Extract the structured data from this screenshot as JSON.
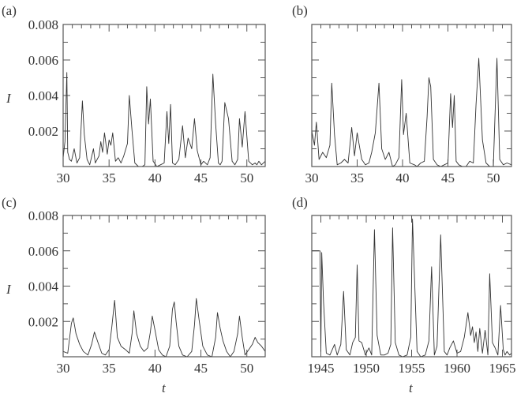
{
  "chart_data": [
    {
      "panel": "(a)",
      "type": "line",
      "xlabel": "",
      "ylabel": "I",
      "xlim": [
        30,
        52
      ],
      "ylim": [
        0,
        0.008
      ],
      "xticks": [
        30,
        35,
        40,
        45,
        50
      ],
      "yticks": [
        0.002,
        0.004,
        0.006,
        0.008
      ],
      "ytick_labels": [
        "0.002",
        "0.004",
        "0.006",
        "0.008"
      ],
      "grid": false,
      "x": [
        30.0,
        30.2,
        30.4,
        30.5,
        30.7,
        30.9,
        31.2,
        31.5,
        31.8,
        32.1,
        32.3,
        32.6,
        32.9,
        33.3,
        33.5,
        33.9,
        34.1,
        34.3,
        34.5,
        34.8,
        35.0,
        35.2,
        35.4,
        35.7,
        36.0,
        36.3,
        36.6,
        37.0,
        37.2,
        37.5,
        37.8,
        38.2,
        38.6,
        38.9,
        39.1,
        39.3,
        39.5,
        39.8,
        40.2,
        40.6,
        41.0,
        41.3,
        41.5,
        41.7,
        41.9,
        42.2,
        42.6,
        43.0,
        43.3,
        43.6,
        44.0,
        44.3,
        44.6,
        45.0,
        45.3,
        45.7,
        46.0,
        46.3,
        46.6,
        46.9,
        47.1,
        47.3,
        47.6,
        48.0,
        48.4,
        48.7,
        49.0,
        49.2,
        49.5,
        49.8,
        50.2,
        50.6,
        50.9,
        51.1,
        51.3,
        51.6,
        52.0
      ],
      "values": [
        0.0005,
        0.0014,
        0.0053,
        0.0008,
        0.0004,
        0.0003,
        0.001,
        0.0002,
        0.0005,
        0.0037,
        0.0018,
        0.0004,
        0.0001,
        0.001,
        0.0002,
        0.0006,
        0.0014,
        0.0008,
        0.0019,
        0.0007,
        0.0015,
        0.0012,
        0.0019,
        0.0003,
        0.0005,
        0.0002,
        0.0006,
        0.0013,
        0.004,
        0.002,
        0.0002,
        0.0,
        0.0,
        0.0001,
        0.0045,
        0.0024,
        0.0038,
        0.0003,
        0.0,
        0.0001,
        0.0002,
        0.0031,
        0.0013,
        0.0035,
        0.0002,
        0.0001,
        0.0004,
        0.0023,
        0.0005,
        0.0016,
        0.001,
        0.0027,
        0.0009,
        0.0001,
        0.0003,
        0.0001,
        0.0005,
        0.0052,
        0.0024,
        0.0002,
        0.0001,
        0.0003,
        0.0036,
        0.0027,
        0.0003,
        0.0001,
        0.0004,
        0.0027,
        0.0011,
        0.0031,
        0.0003,
        0.0001,
        0.0002,
        0.0001,
        0.0003,
        0.0001,
        0.0003
      ]
    },
    {
      "panel": "(b)",
      "type": "line",
      "xlabel": "",
      "ylabel": "",
      "xlim": [
        30,
        52
      ],
      "ylim": [
        0,
        0.008
      ],
      "xticks": [
        30,
        35,
        40,
        45,
        50
      ],
      "yticks": [
        0.002,
        0.004,
        0.006,
        0.008
      ],
      "grid": false,
      "x": [
        30.0,
        30.3,
        30.5,
        30.8,
        31.2,
        31.6,
        32.0,
        32.2,
        32.5,
        32.8,
        33.2,
        33.6,
        34.0,
        34.2,
        34.4,
        34.7,
        35.0,
        35.2,
        35.5,
        35.9,
        36.3,
        36.6,
        37.0,
        37.4,
        37.7,
        38.1,
        38.5,
        38.9,
        39.2,
        39.6,
        39.9,
        40.1,
        40.4,
        40.8,
        41.3,
        41.6,
        42.0,
        42.4,
        42.7,
        42.9,
        43.1,
        43.4,
        43.8,
        44.2,
        44.6,
        45.0,
        45.3,
        45.5,
        45.7,
        45.9,
        46.2,
        46.6,
        47.0,
        47.4,
        47.8,
        48.1,
        48.4,
        48.8,
        49.2,
        49.6,
        50.0,
        50.2,
        50.4,
        50.7,
        51.1,
        51.5,
        52.0
      ],
      "values": [
        0.002,
        0.0012,
        0.0025,
        0.0004,
        0.0008,
        0.0005,
        0.0012,
        0.0047,
        0.0018,
        0.0001,
        0.0002,
        0.0004,
        0.0002,
        0.0012,
        0.0022,
        0.0006,
        0.0019,
        0.0013,
        0.0004,
        0.0001,
        0.0002,
        0.0008,
        0.0019,
        0.0047,
        0.001,
        0.0004,
        0.0008,
        0.0,
        0.0001,
        0.0005,
        0.0049,
        0.0018,
        0.003,
        0.0002,
        0.0001,
        0.0,
        0.0002,
        0.0003,
        0.0028,
        0.005,
        0.0045,
        0.0004,
        0.0001,
        0.0,
        0.0001,
        0.0002,
        0.0041,
        0.0022,
        0.004,
        0.0003,
        0.0001,
        0.0,
        0.0,
        0.0003,
        0.0002,
        0.0035,
        0.0061,
        0.0015,
        0.0002,
        0.0,
        0.0,
        0.0031,
        0.0061,
        0.0004,
        0.0001,
        0.0002,
        0.0001
      ]
    },
    {
      "panel": "(c)",
      "type": "line",
      "xlabel": "t",
      "ylabel": "I",
      "xlim": [
        30,
        52
      ],
      "ylim": [
        0,
        0.008
      ],
      "xticks": [
        30,
        35,
        40,
        45,
        50
      ],
      "yticks": [
        0.002,
        0.004,
        0.006,
        0.008
      ],
      "ytick_labels": [
        "0.002",
        "0.004",
        "0.006",
        "0.008"
      ],
      "grid": false,
      "x": [
        30.0,
        30.5,
        30.9,
        31.1,
        31.4,
        31.8,
        32.2,
        32.7,
        33.1,
        33.4,
        33.8,
        34.2,
        34.6,
        35.0,
        35.3,
        35.6,
        35.9,
        36.3,
        36.8,
        37.2,
        37.5,
        37.7,
        38.0,
        38.4,
        38.8,
        39.2,
        39.5,
        39.7,
        40.0,
        40.4,
        40.8,
        41.2,
        41.6,
        41.9,
        42.1,
        42.3,
        42.6,
        43.0,
        43.5,
        44.0,
        44.3,
        44.5,
        44.8,
        45.2,
        45.7,
        46.2,
        46.6,
        46.8,
        47.1,
        47.4,
        47.8,
        48.2,
        48.6,
        49.0,
        49.2,
        49.5,
        49.8,
        50.2,
        50.6,
        50.9,
        51.2,
        51.6,
        52.0
      ],
      "values": [
        0.0003,
        0.0002,
        0.0019,
        0.0022,
        0.0013,
        0.0007,
        0.0003,
        0.0001,
        0.0007,
        0.0014,
        0.0008,
        0.0002,
        0.0001,
        0.0004,
        0.0017,
        0.0032,
        0.0011,
        0.0006,
        0.0004,
        0.0002,
        0.0013,
        0.0026,
        0.0013,
        0.0006,
        0.0003,
        0.0005,
        0.0014,
        0.0023,
        0.0015,
        0.0004,
        0.0001,
        0.0,
        0.0006,
        0.0027,
        0.0031,
        0.002,
        0.0006,
        0.0001,
        0.0,
        0.0003,
        0.0018,
        0.0033,
        0.0021,
        0.0006,
        0.0001,
        0.0,
        0.0011,
        0.0025,
        0.0016,
        0.0009,
        0.0003,
        0.0,
        0.0003,
        0.0013,
        0.0023,
        0.0011,
        0.0001,
        0.0004,
        0.0007,
        0.0011,
        0.0008,
        0.0006,
        0.0003
      ]
    },
    {
      "panel": "(d)",
      "type": "line",
      "xlabel": "t",
      "ylabel": "",
      "xlim": [
        1944,
        1966
      ],
      "ylim": [
        0,
        0.008
      ],
      "xticks": [
        1945,
        1950,
        1955,
        1960,
        1965
      ],
      "yticks": [
        0.002,
        0.004,
        0.006,
        0.008
      ],
      "grid": false,
      "x": [
        1944.0,
        1944.9,
        1945.0,
        1945.1,
        1945.3,
        1945.6,
        1946.0,
        1946.5,
        1946.8,
        1947.2,
        1947.5,
        1947.8,
        1948.2,
        1948.5,
        1948.8,
        1949.0,
        1949.2,
        1949.5,
        1949.9,
        1950.3,
        1950.6,
        1950.9,
        1951.2,
        1951.6,
        1952.0,
        1952.4,
        1952.7,
        1952.9,
        1953.2,
        1953.6,
        1954.0,
        1954.5,
        1954.9,
        1955.1,
        1955.3,
        1955.6,
        1956.0,
        1956.5,
        1956.9,
        1957.2,
        1957.5,
        1957.8,
        1958.2,
        1958.6,
        1958.9,
        1959.2,
        1959.6,
        1960.0,
        1960.4,
        1960.8,
        1961.2,
        1961.5,
        1961.7,
        1961.9,
        1962.1,
        1962.3,
        1962.5,
        1962.8,
        1963.1,
        1963.4,
        1963.6,
        1963.9,
        1964.2,
        1964.5,
        1964.8,
        1965.1,
        1965.3,
        1965.5,
        1965.8,
        1966.0
      ],
      "values": [
        0.006,
        0.006,
        0.0003,
        0.0059,
        0.0031,
        0.0002,
        0.0001,
        0.0007,
        0.0001,
        0.0007,
        0.0037,
        0.0004,
        0.0001,
        0.0008,
        0.0011,
        0.0052,
        0.0009,
        0.0008,
        0.0001,
        0.0005,
        0.0001,
        0.0072,
        0.0012,
        0.0001,
        0.0001,
        0.0002,
        0.0007,
        0.0073,
        0.0008,
        0.0001,
        0.0,
        0.0001,
        0.0011,
        0.0078,
        0.0048,
        0.0003,
        0.0,
        0.0001,
        0.0009,
        0.0051,
        0.0001,
        0.0006,
        0.0069,
        0.0003,
        0.0001,
        0.0005,
        0.0009,
        0.0002,
        0.0003,
        0.0011,
        0.0025,
        0.0012,
        0.0017,
        0.0008,
        0.0014,
        0.0003,
        0.0016,
        0.0002,
        0.0015,
        0.0001,
        0.0047,
        0.0008,
        0.0005,
        0.0001,
        0.0029,
        0.0004,
        0.0001,
        0.0003,
        0.0001,
        0.0002
      ]
    }
  ],
  "panels": {
    "a": {
      "label": "(a)"
    },
    "b": {
      "label": "(b)"
    },
    "c": {
      "label": "(c)"
    },
    "d": {
      "label": "(d)"
    }
  },
  "axes": {
    "ylabel": "I",
    "xlabel": "t"
  }
}
